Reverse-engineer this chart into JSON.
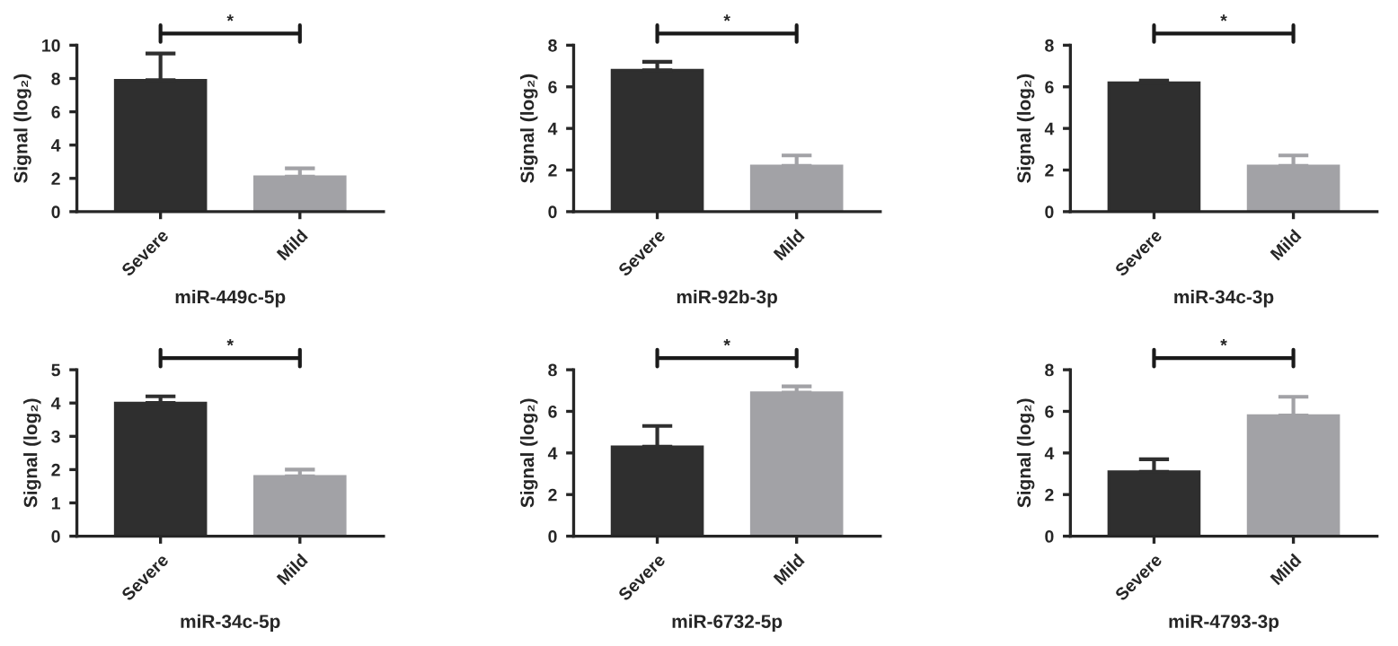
{
  "chart_data": [
    {
      "type": "bar",
      "categories": [
        "Severe",
        "Mild"
      ],
      "values": [
        7.9,
        2.1
      ],
      "colors": [
        "#2f2f2f",
        "#a2a2a6"
      ],
      "errors": [
        [
          7.9,
          9.5
        ],
        [
          2.1,
          2.6
        ]
      ],
      "xlabel": "miR-449c-5p",
      "ylabel": "Signal (log₂)",
      "ylim": [
        0,
        10
      ],
      "yticks": [
        0,
        2,
        4,
        6,
        8,
        10
      ],
      "annotations": [
        "*"
      ],
      "grid": false,
      "legend": false
    },
    {
      "type": "bar",
      "categories": [
        "Severe",
        "Mild"
      ],
      "values": [
        6.8,
        2.2
      ],
      "colors": [
        "#2f2f2f",
        "#a2a2a6"
      ],
      "errors": [
        [
          6.8,
          7.2
        ],
        [
          2.2,
          2.7
        ]
      ],
      "xlabel": "miR-92b-3p",
      "ylabel": "Signal (log₂)",
      "ylim": [
        0,
        8
      ],
      "yticks": [
        0,
        2,
        4,
        6,
        8
      ],
      "annotations": [
        "*"
      ],
      "grid": false,
      "legend": false
    },
    {
      "type": "bar",
      "categories": [
        "Severe",
        "Mild"
      ],
      "values": [
        6.2,
        2.2
      ],
      "colors": [
        "#2f2f2f",
        "#a2a2a6"
      ],
      "errors": [
        [
          6.2,
          6.3
        ],
        [
          2.2,
          2.7
        ]
      ],
      "xlabel": "miR-34c-3p",
      "ylabel": "Signal (log₂)",
      "ylim": [
        0,
        8
      ],
      "yticks": [
        0,
        2,
        4,
        6,
        8
      ],
      "annotations": [
        "*"
      ],
      "grid": false,
      "legend": false
    },
    {
      "type": "bar",
      "categories": [
        "Severe",
        "Mild"
      ],
      "values": [
        4.0,
        1.8
      ],
      "colors": [
        "#2f2f2f",
        "#a2a2a6"
      ],
      "errors": [
        [
          4.0,
          4.2
        ],
        [
          1.8,
          2.0
        ]
      ],
      "xlabel": "miR-34c-5p",
      "ylabel": "Signal (log₂)",
      "ylim": [
        0,
        5
      ],
      "yticks": [
        0,
        1,
        2,
        3,
        4,
        5
      ],
      "annotations": [
        "*"
      ],
      "grid": false,
      "legend": false
    },
    {
      "type": "bar",
      "categories": [
        "Severe",
        "Mild"
      ],
      "values": [
        4.3,
        6.9
      ],
      "colors": [
        "#2f2f2f",
        "#a2a2a6"
      ],
      "errors": [
        [
          4.3,
          5.3
        ],
        [
          6.9,
          7.2
        ]
      ],
      "xlabel": "miR-6732-5p",
      "ylabel": "Signal (log₂)",
      "ylim": [
        0,
        8
      ],
      "yticks": [
        0,
        2,
        4,
        6,
        8
      ],
      "annotations": [
        "*"
      ],
      "grid": false,
      "legend": false
    },
    {
      "type": "bar",
      "categories": [
        "Severe",
        "Mild"
      ],
      "values": [
        3.1,
        5.8
      ],
      "colors": [
        "#2f2f2f",
        "#a2a2a6"
      ],
      "errors": [
        [
          3.1,
          3.7
        ],
        [
          5.8,
          6.7
        ]
      ],
      "xlabel": "miR-4793-3p",
      "ylabel": "Signal (log₂)",
      "ylim": [
        0,
        8
      ],
      "yticks": [
        0,
        2,
        4,
        6,
        8
      ],
      "annotations": [
        "*"
      ],
      "grid": false,
      "legend": false
    }
  ]
}
